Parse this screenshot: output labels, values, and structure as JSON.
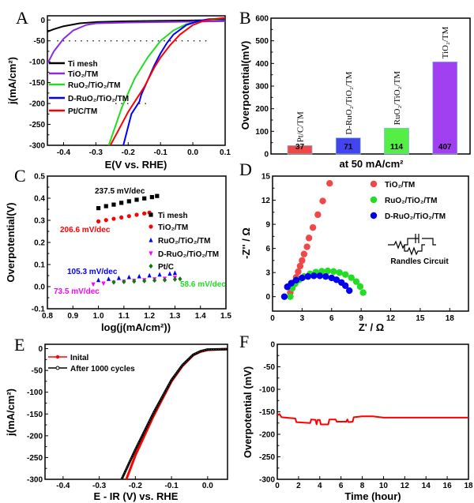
{
  "chart_data": [
    {
      "panel": "A",
      "type": "line",
      "xlabel": "E(V vs. RHE)",
      "ylabel": "j(mA/cm²)",
      "xlim": [
        -0.45,
        0.1
      ],
      "ylim": [
        -300,
        10
      ],
      "xticks": [
        -0.4,
        -0.3,
        -0.2,
        -0.1,
        0.0,
        0.1
      ],
      "xtick_labels": [
        "-0.4",
        "-0.3",
        "-0.2",
        "-0.1",
        "0.0",
        "0.1"
      ],
      "yticks": [
        0,
        -50,
        -100,
        -150,
        -200,
        -250,
        -300
      ],
      "ytick_labels": [
        "0",
        "-50",
        "-100",
        "-150",
        "-200",
        "-250",
        "-300"
      ],
      "legend": "left",
      "series": [
        {
          "name": "Ti mesh",
          "color": "#000000",
          "x": [
            -0.45,
            -0.43,
            -0.4,
            -0.35,
            -0.3,
            -0.2,
            -0.1,
            0,
            0.1
          ],
          "y": [
            -28,
            -22,
            -15,
            -8,
            -5,
            -3,
            -2,
            -1,
            0
          ]
        },
        {
          "name": "TiO₂/TM",
          "color": "#8a2be2",
          "x": [
            -0.45,
            -0.43,
            -0.4,
            -0.37,
            -0.33,
            -0.3,
            -0.2,
            0,
            0.1
          ],
          "y": [
            -105,
            -75,
            -45,
            -25,
            -12,
            -8,
            -6,
            -4,
            -3
          ]
        },
        {
          "name": "RuO₂/TiO₂/TM",
          "color": "#22dd22",
          "x": [
            -0.26,
            -0.22,
            -0.18,
            -0.14,
            -0.1,
            -0.06,
            -0.02,
            0.02,
            0.05,
            0.1
          ],
          "y": [
            -300,
            -210,
            -140,
            -90,
            -50,
            -25,
            -10,
            -3,
            0,
            2
          ]
        },
        {
          "name": "D-RuO₂/TiO₂/TM",
          "color": "#0000ff",
          "x": [
            -0.215,
            -0.2,
            -0.19,
            -0.165,
            -0.16,
            -0.14,
            -0.12,
            -0.1,
            -0.08,
            -0.06,
            -0.02,
            0.02,
            0.05,
            0.1
          ],
          "y": [
            -300,
            -255,
            -225,
            -195,
            -180,
            -145,
            -110,
            -80,
            -55,
            -35,
            -12,
            -2,
            2,
            3
          ]
        },
        {
          "name": "Pt/C/TM",
          "color": "#ff0000",
          "x": [
            -0.255,
            -0.2,
            -0.15,
            -0.12,
            -0.1,
            -0.07,
            -0.04,
            0,
            0.03,
            0.06,
            0.1
          ],
          "y": [
            -300,
            -220,
            -160,
            -115,
            -90,
            -60,
            -35,
            -12,
            -3,
            2,
            5
          ]
        }
      ],
      "reference_lines": [
        {
          "y": -50,
          "x": [
            -0.42,
            0.045
          ],
          "style": "dotted"
        },
        {
          "y": -200,
          "x": [
            -0.24,
            -0.14
          ],
          "style": "dotted"
        }
      ]
    },
    {
      "panel": "B",
      "type": "bar",
      "xlabel": "at 50 mA/cm²",
      "ylabel": "Overpotential(mV)",
      "ylim": [
        0,
        600
      ],
      "yticks": [
        0,
        100,
        200,
        300,
        400,
        500,
        600
      ],
      "ytick_labels": [
        "0",
        "100",
        "200",
        "300",
        "400",
        "500",
        "600"
      ],
      "categories": [
        "Pt/C/TM",
        "D-RuO₂/TiO₂/TM",
        "RuO₂/TiO₂/TM",
        "TiO₂/TM"
      ],
      "values": [
        37,
        71,
        114,
        407
      ],
      "value_labels": [
        "37",
        "71",
        "114",
        "407"
      ],
      "colors": [
        "#f04848",
        "#4444ee",
        "#55ee44",
        "#a040f0"
      ]
    },
    {
      "panel": "C",
      "type": "scatter",
      "xlabel": "log(j(mA/cm²))",
      "ylabel": "Overpotential(V)",
      "xlim": [
        0.8,
        1.5
      ],
      "ylim": [
        -0.1,
        0.5
      ],
      "xticks": [
        0.8,
        0.9,
        1.0,
        1.1,
        1.2,
        1.3,
        1.4,
        1.5
      ],
      "xtick_labels": [
        "0.8",
        "0.9",
        "1.0",
        "1.1",
        "1.2",
        "1.3",
        "1.4",
        "1.5"
      ],
      "yticks": [
        -0.1,
        0.0,
        0.1,
        0.2,
        0.3,
        0.4,
        0.5
      ],
      "ytick_labels": [
        "-0.1",
        "0.0",
        "0.1",
        "0.2",
        "0.3",
        "0.4",
        "0.5"
      ],
      "legend": "right",
      "series": [
        {
          "name": "Ti mesh",
          "color": "#000000",
          "marker": "square",
          "x": [
            1.0,
            1.03,
            1.06,
            1.09,
            1.12,
            1.15,
            1.18,
            1.21,
            1.23
          ],
          "y": [
            0.355,
            0.364,
            0.371,
            0.379,
            0.386,
            0.393,
            0.399,
            0.405,
            0.41
          ]
        },
        {
          "name": "TiO₂/TM",
          "color": "#ff0000",
          "marker": "circle",
          "x": [
            1.0,
            1.03,
            1.06,
            1.09,
            1.12,
            1.15,
            1.18,
            1.2
          ],
          "y": [
            0.295,
            0.301,
            0.307,
            0.313,
            0.319,
            0.325,
            0.331,
            0.335
          ]
        },
        {
          "name": "RuO₂/TiO₂/TM",
          "color": "#0000ff",
          "marker": "triangle-up",
          "x": [
            1.0,
            1.04,
            1.08,
            1.12,
            1.16,
            1.2,
            1.24,
            1.28,
            1.3
          ],
          "y": [
            0.03,
            0.035,
            0.039,
            0.043,
            0.047,
            0.051,
            0.055,
            0.059,
            0.062
          ]
        },
        {
          "name": "D-RuO₂/TiO₂/TM",
          "color": "#ff00ff",
          "marker": "triangle-down",
          "x": [
            0.98,
            1.02,
            1.06,
            1.1,
            1.14,
            1.18,
            1.22,
            1.26,
            1.3
          ],
          "y": [
            0.01,
            0.014,
            0.018,
            0.022,
            0.026,
            0.029,
            0.033,
            0.036,
            0.04
          ]
        },
        {
          "name": "Pt/C",
          "color": "#117711",
          "marker": "diamond",
          "x": [
            1.06,
            1.1,
            1.14,
            1.18,
            1.22,
            1.26,
            1.3,
            1.32
          ],
          "y": [
            0.02,
            0.022,
            0.024,
            0.026,
            0.028,
            0.03,
            0.033,
            0.035
          ]
        }
      ],
      "annotations": [
        {
          "text": "237.5 mV/dec",
          "color": "#000000"
        },
        {
          "text": "206.6 mV/dec",
          "color": "#ff0000"
        },
        {
          "text": "105.3 mV/dec",
          "color": "#0000ff"
        },
        {
          "text": "73.5 mV/dec",
          "color": "#ff00ff"
        },
        {
          "text": "58.6 mV/dec",
          "color": "#22dd22"
        }
      ]
    },
    {
      "panel": "D",
      "type": "scatter",
      "xlabel": "Z' / Ω",
      "ylabel": "-Z'' / Ω",
      "xlim": [
        0,
        19.9
      ],
      "ylim": [
        -1.8,
        15
      ],
      "xticks": [
        0,
        3,
        6,
        9,
        12,
        15,
        18
      ],
      "xtick_labels": [
        "0",
        "3",
        "6",
        "9",
        "12",
        "15",
        "18"
      ],
      "yticks": [
        0,
        3,
        6,
        9,
        12,
        15
      ],
      "ytick_labels": [
        "0",
        "3",
        "6",
        "9",
        "12",
        "15"
      ],
      "legend": "top-right",
      "inset_label": "Randles Circuit",
      "series": [
        {
          "name": "TiO₂/TM",
          "color": "#f04848",
          "x": [
            1.8,
            2.0,
            2.2,
            2.4,
            2.6,
            2.8,
            3.0,
            3.2,
            3.5,
            3.7,
            4.1,
            4.6,
            5.1,
            5.8
          ],
          "y": [
            0.5,
            1.2,
            1.8,
            2.4,
            3.1,
            3.8,
            4.5,
            5.3,
            6.2,
            7.3,
            8.6,
            10.2,
            11.9,
            14.1
          ]
        },
        {
          "name": "RuO₂/TiO₂/TM",
          "color": "#22dd22",
          "x": [
            1.8,
            2.0,
            2.3,
            2.7,
            3.2,
            3.8,
            4.4,
            5.0,
            5.6,
            6.2,
            6.8,
            7.4,
            8.0,
            8.5,
            8.9,
            9.2
          ],
          "y": [
            0,
            1.04,
            1.61,
            2.09,
            2.51,
            2.84,
            3.06,
            3.17,
            3.2,
            3.14,
            3.0,
            2.75,
            2.36,
            1.87,
            1.26,
            0.5
          ]
        },
        {
          "name": "D-RuO₂/TiO₂/TM",
          "color": "#0000ee",
          "x": [
            1.2,
            1.5,
            1.9,
            2.4,
            3.0,
            3.6,
            4.2,
            4.8,
            5.4,
            6.0,
            6.5,
            7.0,
            7.4,
            7.8
          ],
          "y": [
            0,
            1.22,
            1.67,
            2.05,
            2.33,
            2.51,
            2.59,
            2.59,
            2.51,
            2.33,
            2.1,
            1.76,
            1.36,
            0.75
          ]
        }
      ]
    },
    {
      "panel": "E",
      "type": "line",
      "xlabel": "E - IR (V) vs. RHE",
      "ylabel": "j(mA/cm²)",
      "xlim": [
        -0.45,
        0.055
      ],
      "ylim": [
        -300,
        10
      ],
      "xticks": [
        -0.4,
        -0.3,
        -0.2,
        -0.1,
        0.0
      ],
      "xtick_labels": [
        "-0.4",
        "-0.3",
        "-0.2",
        "-0.1",
        "0.0"
      ],
      "yticks": [
        0,
        -50,
        -100,
        -150,
        -200,
        -250,
        -300
      ],
      "ytick_labels": [
        "0",
        "-50",
        "-100",
        "-150",
        "-200",
        "-250",
        "-300"
      ],
      "legend": "top-left",
      "series": [
        {
          "name": "Inital",
          "color": "#ff0000",
          "marker": "filled-circle",
          "x": [
            -0.225,
            -0.2,
            -0.15,
            -0.1,
            -0.07,
            -0.04,
            -0.02,
            0,
            0.055
          ],
          "y": [
            -300,
            -245,
            -155,
            -75,
            -40,
            -15,
            -7,
            -3,
            -1
          ]
        },
        {
          "name": "After 1000 cycles",
          "color": "#000000",
          "marker": "open-circle",
          "x": [
            -0.238,
            -0.2,
            -0.15,
            -0.1,
            -0.07,
            -0.04,
            -0.02,
            0,
            0.055
          ],
          "y": [
            -300,
            -232,
            -148,
            -72,
            -38,
            -14,
            -6,
            -2,
            -1
          ]
        }
      ]
    },
    {
      "panel": "F",
      "type": "line",
      "xlabel": "Time (hour)",
      "ylabel": "Overpotential (mV)",
      "xlim": [
        0,
        18
      ],
      "ylim": [
        -300,
        0
      ],
      "xticks": [
        0,
        2,
        4,
        6,
        8,
        10,
        12,
        14,
        16,
        18
      ],
      "xtick_labels": [
        "0",
        "2",
        "4",
        "6",
        "8",
        "10",
        "12",
        "14",
        "16",
        "18"
      ],
      "yticks": [
        0,
        -50,
        -100,
        -150,
        -200,
        -250,
        -300
      ],
      "ytick_labels": [
        "0",
        "-50",
        "-100",
        "-150",
        "-200",
        "-250",
        "-300"
      ],
      "series": [
        {
          "color": "#ff0000",
          "x": [
            0,
            0.2,
            0.4,
            1.7,
            1.8,
            3.1,
            3.2,
            3.6,
            3.7,
            3.8,
            4.0,
            4.1,
            4.8,
            4.9,
            5.5,
            5.6,
            6.5,
            6.6,
            6.7,
            7.1,
            7.2,
            8,
            9,
            10,
            18
          ],
          "y": [
            -158,
            -155,
            -162,
            -165,
            -173,
            -175,
            -167,
            -168,
            -178,
            -168,
            -168,
            -178,
            -178,
            -167,
            -167,
            -172,
            -172,
            -167,
            -173,
            -172,
            -162,
            -160,
            -160,
            -163,
            -163
          ]
        }
      ]
    }
  ],
  "panel_letters": [
    "A",
    "B",
    "C",
    "D",
    "E",
    "F"
  ]
}
